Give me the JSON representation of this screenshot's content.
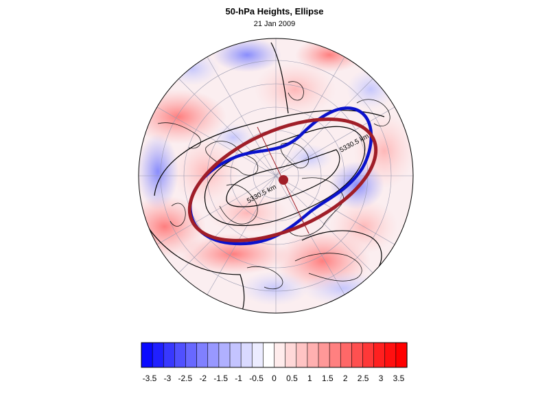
{
  "figure": {
    "title": "50-hPa Heights, Ellipse",
    "subtitle": "21 Jan 2009",
    "contour_labels": [
      "5330.5 km",
      "5330.5 km"
    ]
  },
  "colors": {
    "ellipse": "#a01e28",
    "contour_blue": "#0a12cc",
    "contour_black": "#000000",
    "positive": "#ff0000",
    "negative": "#0000ff",
    "neutral": "#ffffff"
  },
  "colorbar": {
    "tick_labels": [
      "-3.5",
      "-3",
      "-2.5",
      "-2",
      "-1.5",
      "-1",
      "-0.5",
      "0",
      "0.5",
      "1",
      "1.5",
      "2",
      "2.5",
      "3",
      "3.5"
    ],
    "min": -3.5,
    "max": 3.5,
    "colors": [
      "#0a0aff",
      "#2020ff",
      "#3838ff",
      "#5050ff",
      "#6868ff",
      "#8080ff",
      "#9898ff",
      "#b0b0ff",
      "#c4c4ff",
      "#dadaff",
      "#ececff",
      "#ffffff",
      "#ffecec",
      "#ffd8d8",
      "#ffc4c4",
      "#ffb0b0",
      "#ff9898",
      "#ff8080",
      "#ff6868",
      "#ff5050",
      "#ff3838",
      "#ff2020",
      "#ff1010",
      "#ff0000"
    ]
  }
}
